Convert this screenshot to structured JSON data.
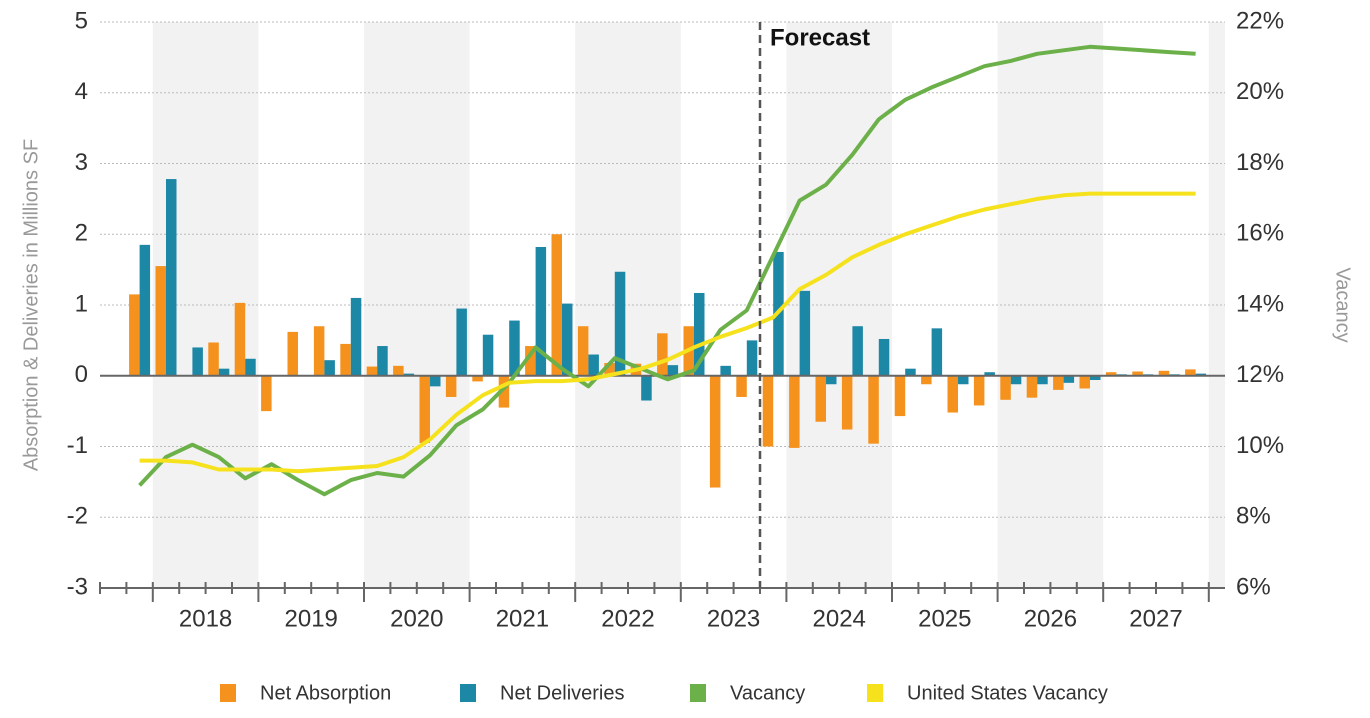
{
  "chart_data": {
    "type": "combo",
    "y_label": "Absorption & Deliveries in Millions SF",
    "y2_label": "Vacancy",
    "annotation": "Forecast",
    "categories": [
      null,
      null,
      "2018",
      null,
      null,
      null,
      "2019",
      null,
      null,
      null,
      "2020",
      null,
      null,
      null,
      "2021",
      null,
      null,
      null,
      "2022",
      null,
      null,
      null,
      "2023",
      null,
      null,
      null,
      "2024",
      null,
      null,
      null,
      "2025",
      null,
      null,
      null,
      "2026",
      null,
      null,
      null,
      "2027",
      null,
      null,
      null
    ],
    "ylim": [
      -3,
      5
    ],
    "yticks": [
      -3,
      -2,
      -1,
      0,
      1,
      2,
      3,
      4,
      5
    ],
    "y2lim": [
      6,
      22
    ],
    "y2ticks": [
      {
        "value": 6,
        "label": "6%"
      },
      {
        "value": 8,
        "label": "8%"
      },
      {
        "value": 10,
        "label": "10%"
      },
      {
        "value": 12,
        "label": "12%"
      },
      {
        "value": 14,
        "label": "14%"
      },
      {
        "value": 16,
        "label": "16%"
      },
      {
        "value": 18,
        "label": "18%"
      },
      {
        "value": 20,
        "label": "20%"
      },
      {
        "value": 22,
        "label": "22%"
      }
    ],
    "grid": true,
    "legend": "bottom",
    "series": [
      {
        "name": "Net Absorption",
        "type": "bar",
        "color": "#f5921e",
        "values": [
          null,
          1.15,
          1.55,
          0,
          0.47,
          1.03,
          -0.5,
          0.62,
          0.7,
          0.45,
          0.13,
          0.14,
          -0.95,
          -0.3,
          -0.08,
          -0.45,
          0.42,
          2.0,
          0.7,
          0.18,
          0.17,
          0.6,
          0.7,
          -1.58,
          -0.3,
          -1.0,
          -1.02,
          -0.65,
          -0.76,
          -0.96,
          -0.57,
          -0.12,
          -0.52,
          -0.42,
          -0.34,
          -0.31,
          -0.2,
          -0.18,
          0.05,
          0.06,
          0.07,
          0.09
        ]
      },
      {
        "name": "Net Deliveries",
        "type": "bar",
        "color": "#1d87a6",
        "values": [
          null,
          1.85,
          2.78,
          0.4,
          0.1,
          0.24,
          0,
          0,
          0.22,
          1.1,
          0.42,
          0.03,
          -0.15,
          0.95,
          0.58,
          0.78,
          1.82,
          1.02,
          0.3,
          1.47,
          -0.35,
          0.15,
          1.17,
          0.14,
          0.5,
          1.75,
          1.2,
          -0.12,
          0.7,
          0.52,
          0.1,
          0.67,
          -0.12,
          0.05,
          -0.12,
          -0.12,
          -0.1,
          -0.06,
          0.02,
          0.02,
          0.02,
          0.03
        ]
      },
      {
        "name": "Vacancy",
        "type": "line",
        "axis": "y2",
        "color": "#6cb04a",
        "values": [
          null,
          8.9,
          9.7,
          10.05,
          9.7,
          9.1,
          9.5,
          9.05,
          8.65,
          9.05,
          9.25,
          9.15,
          9.75,
          10.6,
          11.05,
          11.8,
          12.8,
          12.2,
          11.7,
          12.5,
          12.2,
          11.9,
          12.15,
          13.3,
          13.85,
          15.4,
          16.95,
          17.4,
          18.25,
          19.25,
          19.8,
          20.15,
          20.45,
          20.75,
          20.9,
          21.1,
          21.2,
          21.3,
          21.25,
          21.2,
          21.15,
          21.1
        ]
      },
      {
        "name": "United States Vacancy",
        "type": "line",
        "axis": "y2",
        "color": "#f5e11c",
        "values": [
          null,
          9.6,
          9.6,
          9.55,
          9.35,
          9.35,
          9.35,
          9.3,
          9.35,
          9.4,
          9.45,
          9.7,
          10.2,
          10.9,
          11.45,
          11.8,
          11.85,
          11.85,
          11.9,
          12.05,
          12.2,
          12.45,
          12.8,
          13.1,
          13.35,
          13.65,
          14.45,
          14.85,
          15.35,
          15.7,
          16.0,
          16.25,
          16.5,
          16.7,
          16.85,
          17.0,
          17.1,
          17.15,
          17.15,
          17.15,
          17.15,
          17.15
        ]
      }
    ]
  }
}
